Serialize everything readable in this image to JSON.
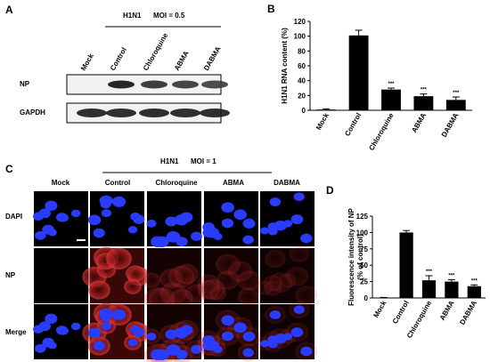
{
  "panel_a": {
    "label": "A",
    "condition": "H1N1",
    "moi": "MOI = 0.5",
    "lanes": [
      "Mock",
      "Control",
      "Chloroquine",
      "ABMA",
      "DABMA"
    ],
    "rows": [
      "NP",
      "GAPDH"
    ]
  },
  "panel_c": {
    "label": "C",
    "condition": "H1N1",
    "moi": "MOI = 1",
    "columns": [
      "Mock",
      "Control",
      "Chloroquine",
      "ABMA",
      "DABMA"
    ],
    "rows": [
      "DAPI",
      "NP",
      "Merge"
    ]
  },
  "chart_data": [
    {
      "type": "bar",
      "label": "B",
      "ylabel": [
        "H1N1 RNA content (%)"
      ],
      "categories": [
        "Mock",
        "Control",
        "Chloroquine",
        "ABMA",
        "DABMA"
      ],
      "values": [
        1,
        101,
        28,
        19,
        14
      ],
      "errors": [
        1,
        7,
        2,
        3,
        4
      ],
      "significance": [
        null,
        null,
        "***",
        "***",
        "***"
      ],
      "color": "#000000",
      "ylim": [
        0,
        120
      ],
      "yticks": [
        0,
        20,
        40,
        60,
        80,
        100,
        120
      ]
    },
    {
      "type": "bar",
      "label": "D",
      "ylabel": [
        "Fluorescence intensity of NP",
        "(% of control)"
      ],
      "categories": [
        "Mock",
        "Control",
        "Chloroquine",
        "ABMA",
        "DABMA"
      ],
      "values": [
        0.5,
        100,
        27,
        25,
        18
      ],
      "errors": [
        0.3,
        3,
        7,
        3,
        2
      ],
      "significance": [
        null,
        null,
        "***",
        "***",
        "***"
      ],
      "color": "#000000",
      "ylim": [
        0,
        125
      ],
      "yticks": [
        0,
        25,
        50,
        75,
        100,
        125
      ]
    }
  ]
}
